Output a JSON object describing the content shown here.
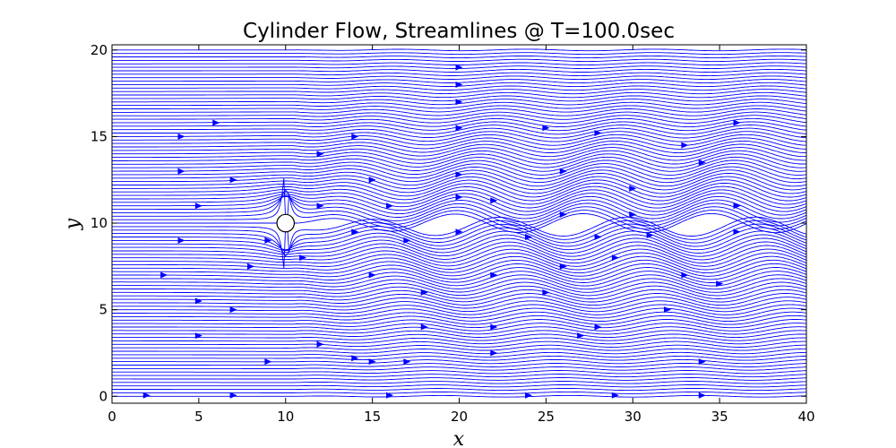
{
  "chart_data": {
    "type": "streamline",
    "title": "Cylinder Flow, Streamlines @ T=100.0sec",
    "xlabel": "x",
    "ylabel": "y",
    "xlim": [
      0,
      40
    ],
    "ylim": [
      -0.4,
      20.3
    ],
    "x_ticks": [
      0,
      5,
      10,
      15,
      20,
      25,
      30,
      35,
      40
    ],
    "y_ticks": [
      0,
      5,
      10,
      15,
      20
    ],
    "x_tick_labels": [
      "0",
      "5",
      "10",
      "15",
      "20",
      "25",
      "30",
      "35",
      "40"
    ],
    "y_tick_labels": [
      "0",
      "5",
      "10",
      "15",
      "20"
    ],
    "grid": false,
    "legend": "none",
    "cylinder": {
      "center": [
        10,
        10
      ],
      "radius": 0.5
    },
    "streamlines": {
      "color": "#0000ff",
      "y_start": 0,
      "y_end": 20,
      "spacing": 0.2,
      "wake_start_x": 10.5,
      "wake_extent": 4.5
    },
    "flow_arrows": {
      "color": "#0000ff",
      "points": [
        [
          2,
          0.05
        ],
        [
          7,
          0.05
        ],
        [
          16,
          0.05
        ],
        [
          24,
          0.05
        ],
        [
          29,
          0.05
        ],
        [
          34,
          0.05
        ],
        [
          9,
          2
        ],
        [
          14,
          2.2
        ],
        [
          17,
          2
        ],
        [
          22,
          2.5
        ],
        [
          27,
          3.5
        ],
        [
          34,
          2
        ],
        [
          5,
          3.5
        ],
        [
          7,
          5
        ],
        [
          12,
          3
        ],
        [
          15,
          2
        ],
        [
          18,
          4
        ],
        [
          22,
          4
        ],
        [
          25,
          6
        ],
        [
          28,
          4
        ],
        [
          32,
          5
        ],
        [
          35,
          6.5
        ],
        [
          3,
          7
        ],
        [
          5,
          5.5
        ],
        [
          8,
          7.5
        ],
        [
          11,
          8
        ],
        [
          15,
          7
        ],
        [
          18,
          6
        ],
        [
          22,
          7
        ],
        [
          26,
          7.5
        ],
        [
          29,
          8
        ],
        [
          33,
          7
        ],
        [
          4,
          9
        ],
        [
          9,
          9
        ],
        [
          14,
          9.5
        ],
        [
          17,
          9
        ],
        [
          20,
          9.5
        ],
        [
          24,
          9.2
        ],
        [
          28,
          9.2
        ],
        [
          31,
          9.3
        ],
        [
          36,
          9.5
        ],
        [
          5,
          11
        ],
        [
          12,
          11
        ],
        [
          16,
          11
        ],
        [
          20,
          11.5
        ],
        [
          22,
          11.3
        ],
        [
          26,
          10.5
        ],
        [
          30,
          10.5
        ],
        [
          36,
          11
        ],
        [
          4,
          13
        ],
        [
          7,
          12.5
        ],
        [
          12,
          14
        ],
        [
          15,
          12.5
        ],
        [
          20,
          12.8
        ],
        [
          26,
          13
        ],
        [
          30,
          12
        ],
        [
          34,
          13.5
        ],
        [
          4,
          15
        ],
        [
          6,
          15.8
        ],
        [
          14,
          15
        ],
        [
          20,
          15.5
        ],
        [
          25,
          15.5
        ],
        [
          28,
          15.2
        ],
        [
          33,
          14.5
        ],
        [
          36,
          15.8
        ],
        [
          20,
          17
        ],
        [
          20,
          18
        ],
        [
          20,
          19
        ]
      ]
    }
  }
}
